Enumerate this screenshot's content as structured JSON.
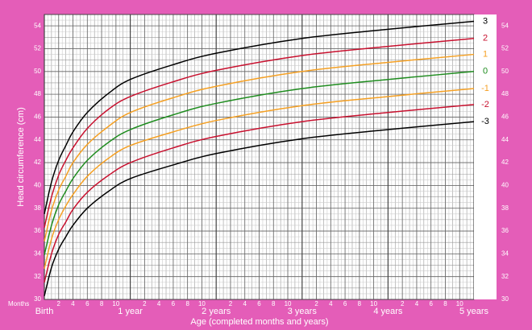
{
  "chart_data": {
    "type": "line",
    "ylabel": "Head circumference (cm)",
    "xlabel": "Age (completed months and years)",
    "x_unit_label": "Months",
    "x": [
      0,
      1,
      2,
      3,
      4,
      6,
      9,
      12,
      18,
      24,
      36,
      48,
      60
    ],
    "xlim": [
      0,
      60
    ],
    "xticks": [
      {
        "value": 0,
        "label": "Birth"
      },
      2,
      4,
      6,
      8,
      10,
      {
        "value": 12,
        "label": "1 year"
      },
      {
        "value": 14,
        "label": "2"
      },
      {
        "value": 16,
        "label": "4"
      },
      {
        "value": 18,
        "label": "6"
      },
      {
        "value": 20,
        "label": "8"
      },
      {
        "value": 22,
        "label": "10"
      },
      {
        "value": 24,
        "label": "2 years"
      },
      {
        "value": 26,
        "label": "2"
      },
      {
        "value": 28,
        "label": "4"
      },
      {
        "value": 30,
        "label": "6"
      },
      {
        "value": 32,
        "label": "8"
      },
      {
        "value": 34,
        "label": "10"
      },
      {
        "value": 36,
        "label": "3 years"
      },
      {
        "value": 38,
        "label": "2"
      },
      {
        "value": 40,
        "label": "4"
      },
      {
        "value": 42,
        "label": "6"
      },
      {
        "value": 44,
        "label": "8"
      },
      {
        "value": 46,
        "label": "10"
      },
      {
        "value": 48,
        "label": "4 years"
      },
      {
        "value": 50,
        "label": "2"
      },
      {
        "value": 52,
        "label": "4"
      },
      {
        "value": 54,
        "label": "6"
      },
      {
        "value": 56,
        "label": "8"
      },
      {
        "value": 58,
        "label": "10"
      },
      {
        "value": 60,
        "label": "5 years"
      }
    ],
    "ylim": [
      30,
      55
    ],
    "yticks": [
      30,
      32,
      34,
      36,
      38,
      40,
      42,
      44,
      46,
      48,
      50,
      52,
      54
    ],
    "grid": true,
    "series": [
      {
        "name": "3",
        "color": "#000000",
        "values": [
          37.5,
          40.3,
          42.2,
          43.5,
          44.7,
          46.4,
          48.1,
          49.3,
          50.6,
          51.6,
          52.9,
          53.7,
          54.4
        ]
      },
      {
        "name": "2",
        "color": "#c8102e",
        "values": [
          36.3,
          39.0,
          40.9,
          42.2,
          43.3,
          45.0,
          46.7,
          47.8,
          49.1,
          50.1,
          51.4,
          52.2,
          52.9
        ]
      },
      {
        "name": "1",
        "color": "#f5a023",
        "values": [
          35.1,
          37.8,
          39.6,
          40.8,
          42.0,
          43.6,
          45.2,
          46.4,
          47.7,
          48.7,
          50.0,
          50.8,
          51.5
        ]
      },
      {
        "name": "0",
        "color": "#1e8c1e",
        "values": [
          33.9,
          36.5,
          38.3,
          39.5,
          40.6,
          42.2,
          43.8,
          44.9,
          46.2,
          47.2,
          48.5,
          49.3,
          50.0
        ]
      },
      {
        "name": "-1",
        "color": "#f5a023",
        "values": [
          32.7,
          35.3,
          37.0,
          38.2,
          39.2,
          40.8,
          42.4,
          43.5,
          44.7,
          45.7,
          47.0,
          47.8,
          48.5
        ]
      },
      {
        "name": "-2",
        "color": "#c8102e",
        "values": [
          31.5,
          34.0,
          35.7,
          36.8,
          37.9,
          39.4,
          40.9,
          42.0,
          43.3,
          44.3,
          45.6,
          46.4,
          47.1
        ]
      },
      {
        "name": "-3",
        "color": "#000000",
        "values": [
          30.3,
          32.8,
          34.4,
          35.5,
          36.5,
          38.0,
          39.5,
          40.6,
          41.8,
          42.8,
          44.1,
          44.9,
          45.6
        ]
      }
    ]
  }
}
